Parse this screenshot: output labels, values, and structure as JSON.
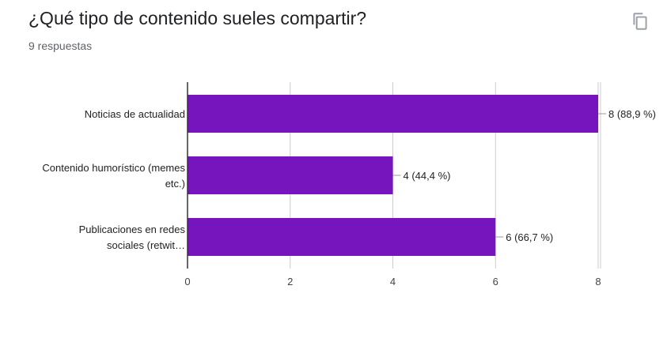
{
  "header": {
    "question": "¿Qué tipo de contenido sueles compartir?",
    "responses": "9 respuestas",
    "copy_icon": "copy-icon"
  },
  "colors": {
    "bar": "#7614be",
    "grid": "#cccccc",
    "axis": "#333333"
  },
  "chart_data": {
    "type": "bar",
    "orientation": "horizontal",
    "title": "¿Qué tipo de contenido sueles compartir?",
    "categories": [
      [
        "Noticias de actualidad"
      ],
      [
        "Contenido humorístico (memes",
        "etc.)"
      ],
      [
        "Publicaciones en redes",
        "sociales (retwit…"
      ]
    ],
    "values": [
      8,
      4,
      6
    ],
    "data_labels": [
      "8 (88,9 %)",
      "4 (44,4 %)",
      "6 (66,7 %)"
    ],
    "xlim": [
      0,
      8
    ],
    "xticks": [
      "0",
      "2",
      "4",
      "6",
      "8"
    ],
    "xlabel": "",
    "ylabel": "",
    "grid": true,
    "legend": "none"
  }
}
